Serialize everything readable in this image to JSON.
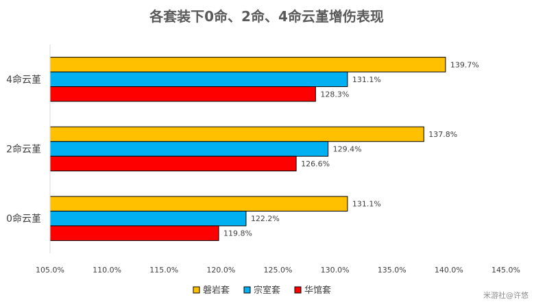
{
  "chart_data": {
    "type": "bar",
    "orientation": "horizontal",
    "title": "各套装下0命、2命、4命云堇增伤表现",
    "categories": [
      "0命云堇",
      "2命云堇",
      "4命云堇"
    ],
    "series": [
      {
        "name": "华馆套",
        "color": "#ff0000",
        "values": [
          1.198,
          1.266,
          1.283
        ],
        "labels": [
          "119.8%",
          "126.6%",
          "128.3%"
        ]
      },
      {
        "name": "宗室套",
        "color": "#00b0f0",
        "values": [
          1.222,
          1.294,
          1.311
        ],
        "labels": [
          "122.2%",
          "129.4%",
          "131.1%"
        ]
      },
      {
        "name": "磐岩套",
        "color": "#ffc000",
        "values": [
          1.311,
          1.378,
          1.397
        ],
        "labels": [
          "131.1%",
          "137.8%",
          "139.7%"
        ]
      }
    ],
    "xlim": [
      1.05,
      1.45
    ],
    "xticks": [
      1.05,
      1.1,
      1.15,
      1.2,
      1.25,
      1.3,
      1.35,
      1.4,
      1.45
    ],
    "xtick_labels": [
      "105.0%",
      "110.0%",
      "115.0%",
      "120.0%",
      "125.0%",
      "130.0%",
      "135.0%",
      "140.0%",
      "145.0%"
    ],
    "legend_order": [
      "磐岩套",
      "宗室套",
      "华馆套"
    ],
    "legend_position": "bottom",
    "grid": false
  },
  "watermark": "米游社@许悠"
}
